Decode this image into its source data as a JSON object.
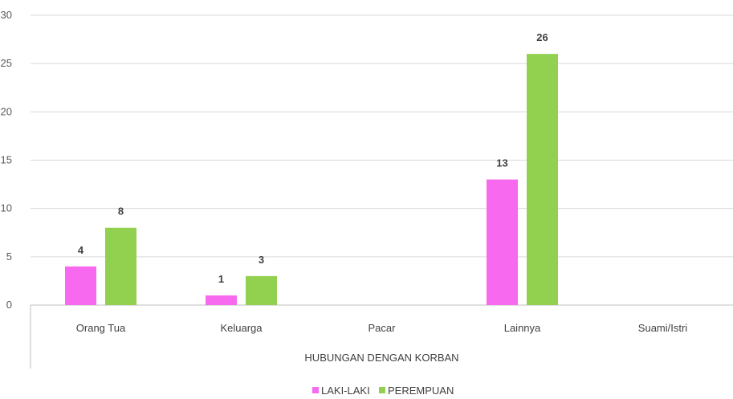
{
  "chart_data": {
    "type": "bar",
    "xlabel": "HUBUNGAN DENGAN KORBAN",
    "ylabel": "",
    "ylim": [
      0,
      30
    ],
    "yticks": [
      0,
      5,
      10,
      15,
      20,
      25,
      30
    ],
    "grid": true,
    "legend_position": "bottom",
    "categories": [
      "Orang Tua",
      "Keluarga",
      "Pacar",
      "Lainnya",
      "Suami/Istri"
    ],
    "series": [
      {
        "name": "LAKI-LAKI",
        "color": "#f76af0",
        "values": [
          4,
          1,
          0,
          13,
          0
        ],
        "labels": [
          "4",
          "1",
          "",
          "13",
          ""
        ]
      },
      {
        "name": "PEREMPUAN",
        "color": "#92d050",
        "values": [
          8,
          3,
          0,
          26,
          0
        ],
        "labels": [
          "8",
          "3",
          "",
          "26",
          ""
        ]
      }
    ]
  }
}
